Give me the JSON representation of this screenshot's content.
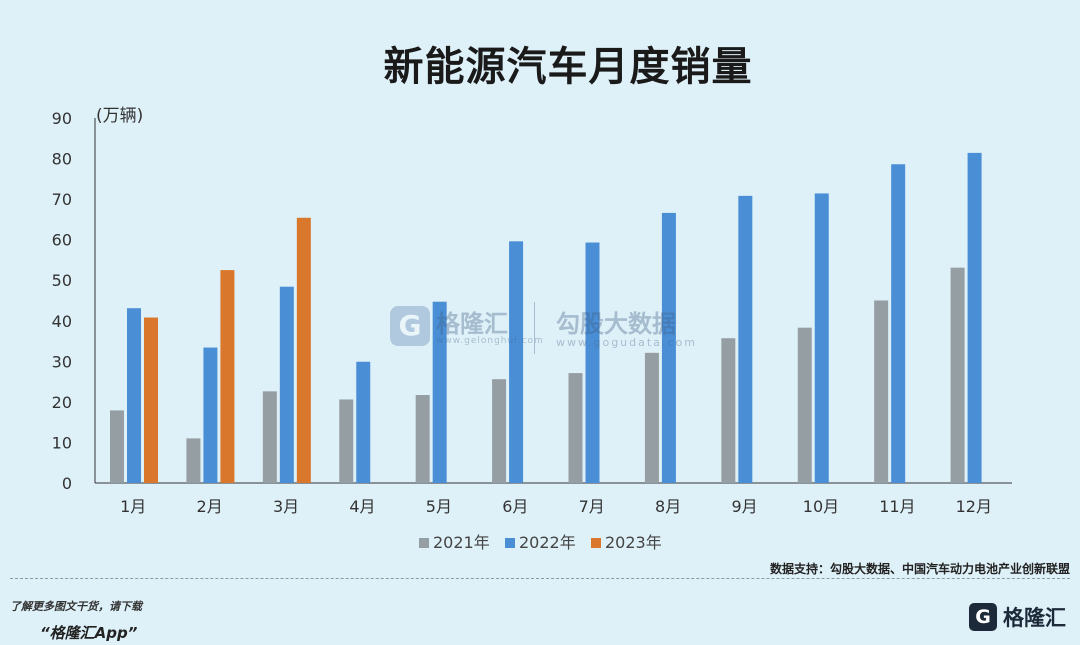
{
  "chart_data": {
    "type": "bar",
    "title": "新能源汽车月度销量",
    "unit_label": "(万辆)",
    "categories": [
      "1月",
      "2月",
      "3月",
      "4月",
      "5月",
      "6月",
      "7月",
      "8月",
      "9月",
      "10月",
      "11月",
      "12月"
    ],
    "series": [
      {
        "name": "2021年",
        "color": "#959ea2",
        "values": [
          17.9,
          11.0,
          22.6,
          20.6,
          21.7,
          25.6,
          27.1,
          32.1,
          35.7,
          38.3,
          45.0,
          53.1
        ]
      },
      {
        "name": "2022年",
        "color": "#4a8fd6",
        "values": [
          43.1,
          33.4,
          48.4,
          29.9,
          44.7,
          59.6,
          59.3,
          66.6,
          70.8,
          71.4,
          78.6,
          81.4
        ]
      },
      {
        "name": "2023年",
        "color": "#d9782c",
        "values": [
          40.8,
          52.5,
          65.4,
          null,
          null,
          null,
          null,
          null,
          null,
          null,
          null,
          null
        ]
      }
    ],
    "y_ticks": [
      "0",
      "10",
      "20",
      "30",
      "40",
      "50",
      "60",
      "70",
      "80",
      "90"
    ],
    "ylim": [
      0,
      90
    ],
    "grid": false,
    "legend_position": "bottom-center"
  },
  "source_note": "数据支持：勾股大数据、中国汽车动力电池产业创新联盟",
  "watermark": {
    "brand": "格隆汇",
    "brand_url": "www.gelonghui.com",
    "partner": "勾股大数据",
    "partner_url": "www.gogudata.com"
  },
  "footer": {
    "promo": "了解更多图文干货，请下载",
    "app": "“格隆汇App”",
    "logo_mark": "G",
    "logo_text": "格隆汇"
  }
}
